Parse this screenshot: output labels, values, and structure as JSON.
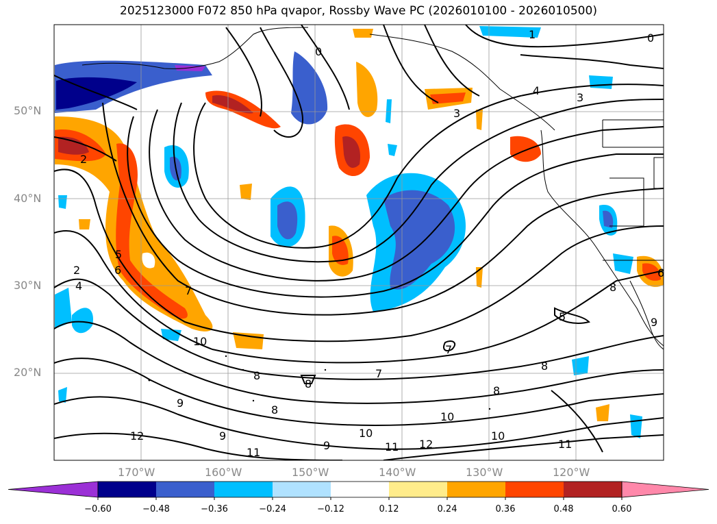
{
  "title": "2025123000 F072 850 hPa qvapor, Rossby Wave PC (2026010100 - 2026010500)",
  "lat_labels": [
    "50°N",
    "40°N",
    "30°N",
    "20°N"
  ],
  "lon_labels": [
    "170°W",
    "160°W",
    "150°W",
    "140°W",
    "130°W",
    "120°W"
  ],
  "colorbar": {
    "ticks": [
      "−0.60",
      "−0.48",
      "−0.36",
      "−0.24",
      "−0.12",
      "0.12",
      "0.24",
      "0.36",
      "0.48",
      "0.60"
    ],
    "colors": [
      "#9b30d6",
      "#00008b",
      "#3a5fcd",
      "#00bfff",
      "#b0e2ff",
      "#ffffff",
      "#ffec8b",
      "#ffa500",
      "#ff4500",
      "#b22222",
      "#ff88aa"
    ]
  },
  "contour_labels": [
    "1",
    "0",
    "4",
    "3",
    "3",
    "2",
    "2",
    "5",
    "6",
    "4",
    "7",
    "10",
    "8",
    "8",
    "7",
    "7",
    "8",
    "9",
    "9",
    "10",
    "10",
    "11",
    "12",
    "12",
    "11",
    "9",
    "11",
    "10",
    "9",
    "8",
    "8",
    "5",
    "8",
    "6",
    "0"
  ],
  "colors": {
    "coastline": "#000000",
    "grid": "#999999",
    "contour": "#000000"
  }
}
